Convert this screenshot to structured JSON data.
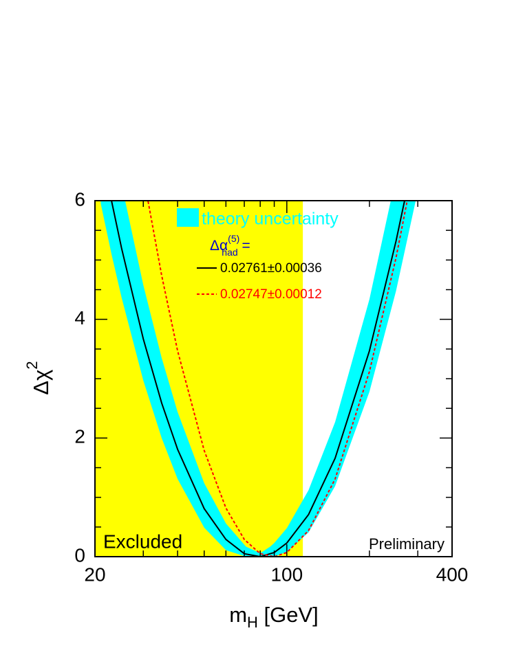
{
  "chart_data": {
    "type": "band-line",
    "xlabel": {
      "main": "m",
      "sub": "H",
      "rest": " [GeV]"
    },
    "ylabel": {
      "main": "Δχ",
      "sup": "2"
    },
    "legend_header": {
      "main": "Δα",
      "sup": "(5)",
      "sub": "had",
      "rest": " ="
    },
    "log_x": true,
    "xlim": [
      20,
      400
    ],
    "xticks": [
      20,
      100,
      400
    ],
    "xminor_ticks": [
      30,
      40,
      50,
      60,
      70,
      80,
      90,
      200,
      300
    ],
    "ylim": [
      0,
      6
    ],
    "yticks": [
      0,
      2,
      4,
      6
    ],
    "yminor_ticks": [
      0.5,
      1,
      1.5,
      2.5,
      3,
      3.5,
      4.5,
      5,
      5.5
    ],
    "excluded": {
      "label": "Excluded",
      "range": [
        20,
        114.4
      ],
      "color": "#ffff00"
    },
    "annotation": "Preliminary",
    "series": [
      {
        "name": "theory uncertainty",
        "color": "#00ffff",
        "style": "band",
        "x": [
          21,
          23,
          25,
          30,
          35,
          40,
          50,
          60,
          71,
          80,
          87,
          90,
          100,
          120,
          150,
          200,
          250,
          300
        ],
        "lower": [
          5.95,
          5.09,
          4.37,
          2.97,
          2.0,
          1.31,
          0.49,
          0.11,
          0,
          0,
          0,
          0,
          0.08,
          0.41,
          1.19,
          2.78,
          4.48,
          6.16
        ],
        "upper": [
          8.15,
          7.14,
          6.28,
          4.58,
          3.35,
          2.44,
          1.24,
          0.56,
          0.17,
          0.06,
          0.17,
          0.23,
          0.48,
          1.12,
          2.27,
          4.34,
          6.41,
          8.4
        ]
      },
      {
        "name": "0.02761±0.00036",
        "color": "#000000",
        "style": "solid",
        "x": [
          23,
          25,
          30,
          35,
          40,
          50,
          60,
          70,
          80,
          90,
          100,
          120,
          150,
          200,
          250,
          270
        ],
        "values": [
          5.99,
          5.2,
          3.67,
          2.59,
          1.81,
          0.81,
          0.29,
          0.05,
          0,
          0.07,
          0.23,
          0.71,
          1.66,
          3.47,
          5.32,
          6.05
        ]
      },
      {
        "name": "0.02747±0.00012",
        "color": "#ff0000",
        "style": "dotted",
        "x": [
          31,
          35,
          40,
          50,
          60,
          70,
          80,
          90,
          100,
          120,
          150,
          200,
          250,
          280
        ],
        "values": [
          6.07,
          4.74,
          3.47,
          1.79,
          0.82,
          0.29,
          0.05,
          0,
          0.07,
          0.44,
          1.31,
          3.12,
          5.04,
          6.2
        ]
      }
    ],
    "legend_header_color": "#0000cc"
  }
}
